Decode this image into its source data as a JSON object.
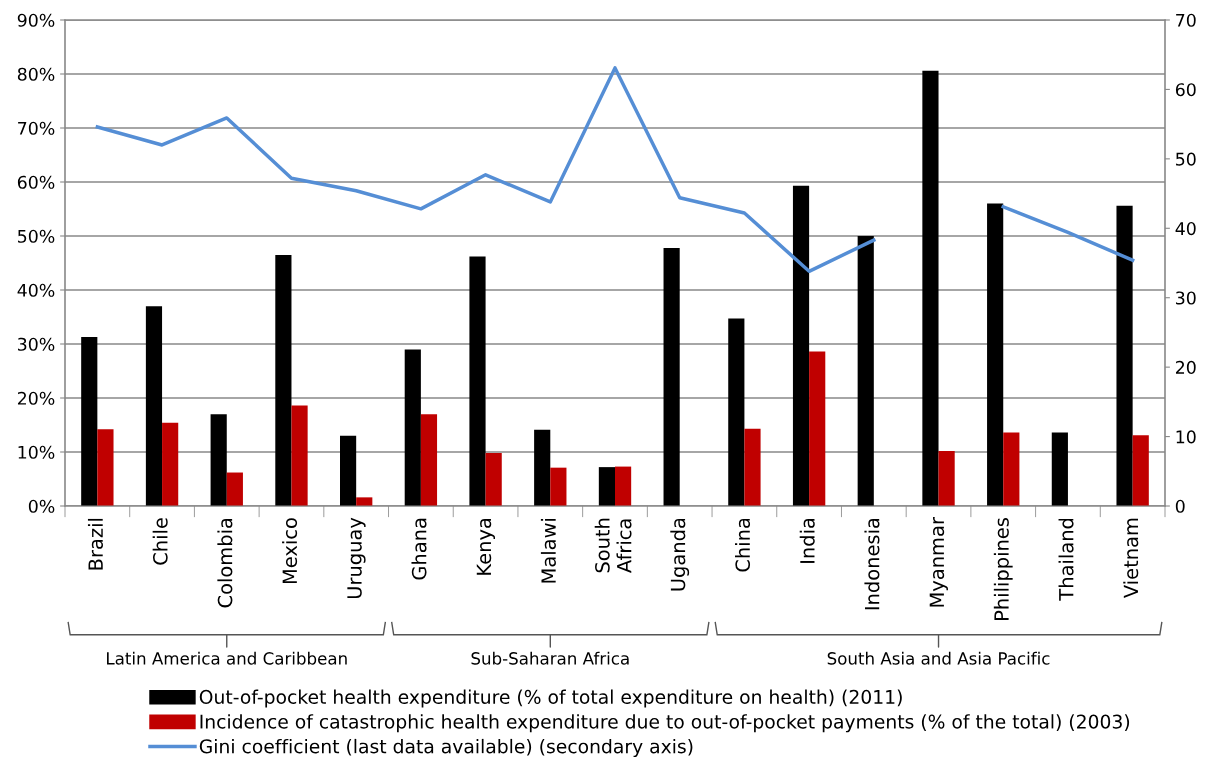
{
  "chart_data": {
    "type": "bar",
    "categories": [
      "Brazil",
      "Chile",
      "Colombia",
      "Mexico",
      "Uruguay",
      "Ghana",
      "Kenya",
      "Malawi",
      "South Africa",
      "Uganda",
      "China",
      "India",
      "Indonesia",
      "Myanmar",
      "Philippines",
      "Thailand",
      "Vietnam"
    ],
    "series": [
      {
        "name": "Out-of-pocket health expenditure (% of total expenditure on health) (2011)",
        "color": "#000000",
        "values": [
          31.3,
          37,
          17,
          46.5,
          13,
          29,
          46.2,
          14.1,
          7.2,
          47.8,
          34.7,
          59.3,
          50,
          80.6,
          56,
          13.6,
          55.6
        ]
      },
      {
        "name": "Incidence of catastrophic health expenditure due to out-of-pocket payments (% of the total) (2003)",
        "color": "#c00000",
        "values": [
          14.2,
          15.4,
          6.2,
          18.6,
          1.6,
          17,
          9.8,
          7.1,
          7.3,
          null,
          14.3,
          28.6,
          null,
          10.2,
          13.6,
          null,
          13.1
        ]
      },
      {
        "name": "Gini coefficient (last data available) (secondary axis)",
        "color": "#558ed5",
        "type": "line",
        "axis": "y2",
        "values": [
          54.6,
          52.0,
          55.9,
          47.2,
          45.4,
          42.8,
          47.7,
          43.8,
          63.1,
          44.4,
          42.2,
          33.8,
          38.3,
          null,
          43.1,
          39.4,
          35.4
        ]
      }
    ],
    "ylim": [
      0,
      90
    ],
    "yticks": [
      {
        "value": 0,
        "label": "0%"
      },
      {
        "value": 10,
        "label": "10%"
      },
      {
        "value": 20,
        "label": "20%"
      },
      {
        "value": 30,
        "label": "30%"
      },
      {
        "value": 40,
        "label": "40%"
      },
      {
        "value": 50,
        "label": "50%"
      },
      {
        "value": 60,
        "label": "60%"
      },
      {
        "value": 70,
        "label": "70%"
      },
      {
        "value": 80,
        "label": "80%"
      },
      {
        "value": 90,
        "label": "90%"
      }
    ],
    "y2lim": [
      0,
      70
    ],
    "y2ticks": [
      0,
      10,
      20,
      30,
      40,
      50,
      60,
      70
    ],
    "grid": "y",
    "legend": "bottom",
    "marker": "none",
    "line_style": "solid",
    "annotations": [
      "Latin America and Caribbean",
      "Sub-Saharan Africa",
      "South Asia and Asia Pacific"
    ]
  }
}
